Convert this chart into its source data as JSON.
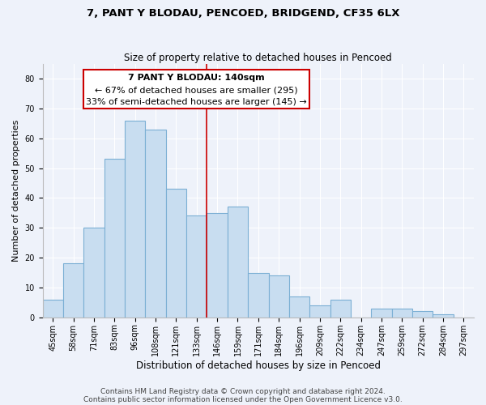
{
  "title": "7, PANT Y BLODAU, PENCOED, BRIDGEND, CF35 6LX",
  "subtitle": "Size of property relative to detached houses in Pencoed",
  "xlabel": "Distribution of detached houses by size in Pencoed",
  "ylabel": "Number of detached properties",
  "bar_color": "#c8ddf0",
  "bar_edge_color": "#7bafd4",
  "background_color": "#eef2fa",
  "grid_color": "#ffffff",
  "categories": [
    "45sqm",
    "58sqm",
    "71sqm",
    "83sqm",
    "96sqm",
    "108sqm",
    "121sqm",
    "133sqm",
    "146sqm",
    "159sqm",
    "171sqm",
    "184sqm",
    "196sqm",
    "209sqm",
    "222sqm",
    "234sqm",
    "247sqm",
    "259sqm",
    "272sqm",
    "284sqm",
    "297sqm"
  ],
  "values": [
    6,
    18,
    30,
    53,
    66,
    63,
    43,
    34,
    35,
    37,
    15,
    14,
    7,
    4,
    6,
    0,
    3,
    3,
    2,
    1,
    0
  ],
  "ylim": [
    0,
    85
  ],
  "yticks": [
    0,
    10,
    20,
    30,
    40,
    50,
    60,
    70,
    80
  ],
  "vline_x_index": 8,
  "vline_color": "#cc0000",
  "annotation_title": "7 PANT Y BLODAU: 140sqm",
  "annotation_line1": "← 67% of detached houses are smaller (295)",
  "annotation_line2": "33% of semi-detached houses are larger (145) →",
  "annotation_box_color": "#ffffff",
  "annotation_box_edge_color": "#cc0000",
  "footer_line1": "Contains HM Land Registry data © Crown copyright and database right 2024.",
  "footer_line2": "Contains public sector information licensed under the Open Government Licence v3.0.",
  "title_fontsize": 9.5,
  "subtitle_fontsize": 8.5,
  "xlabel_fontsize": 8.5,
  "ylabel_fontsize": 8,
  "tick_fontsize": 7,
  "annotation_fontsize": 8,
  "footer_fontsize": 6.5
}
